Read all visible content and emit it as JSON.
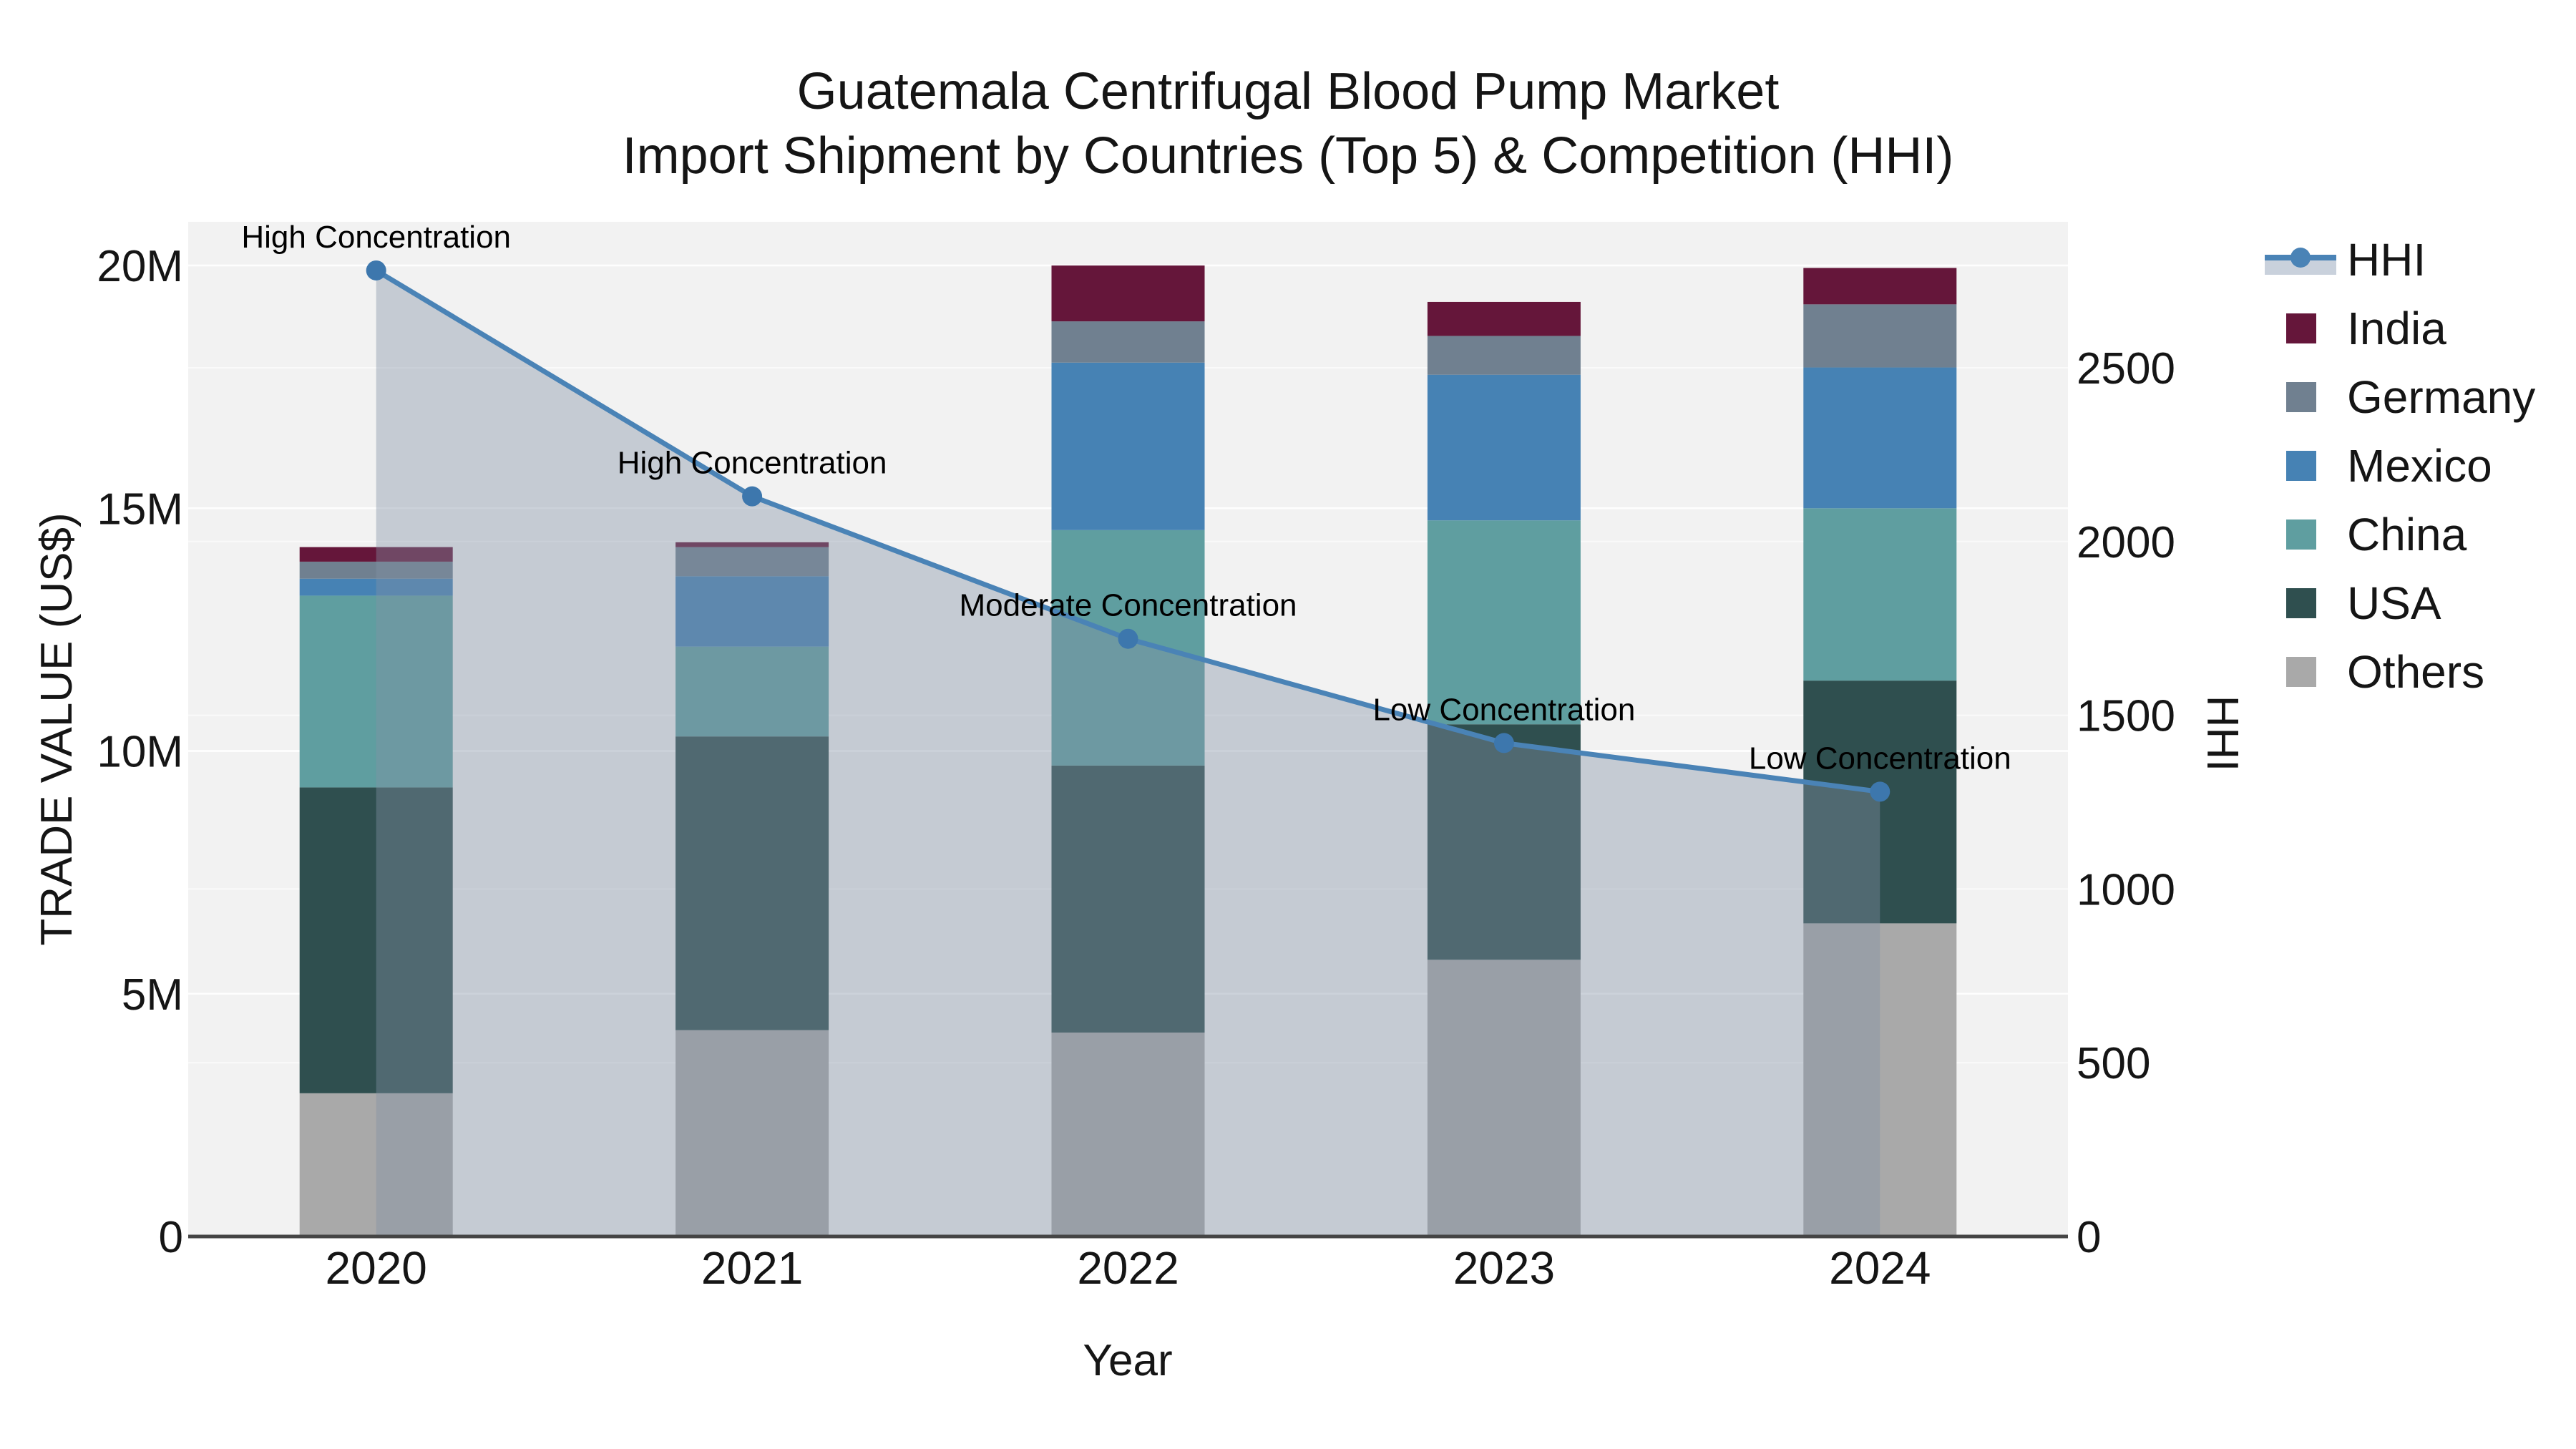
{
  "title": {
    "line1": "Guatemala Centrifugal Blood Pump Market",
    "line2": "Import Shipment by Countries (Top 5) & Competition (HHI)"
  },
  "axes": {
    "x": {
      "title": "Year",
      "categories": [
        "2020",
        "2021",
        "2022",
        "2023",
        "2024"
      ]
    },
    "left": {
      "title": "TRADE VALUE (US$)",
      "tick_labels": [
        "0",
        "5M",
        "10M",
        "15M",
        "20M"
      ],
      "tick_values_musd": [
        0,
        5,
        10,
        15,
        20
      ],
      "max_musd": 20.9
    },
    "right": {
      "title": "HHI",
      "tick_labels": [
        "0",
        "500",
        "1000",
        "1500",
        "2000",
        "2500"
      ],
      "tick_values": [
        0,
        500,
        1000,
        1500,
        2000,
        2500
      ],
      "max": 2920
    }
  },
  "legend": {
    "items": [
      {
        "label": "HHI",
        "type": "line",
        "color": "#4a83b6"
      },
      {
        "label": "India",
        "type": "box",
        "color": "#65163a"
      },
      {
        "label": "Germany",
        "type": "box",
        "color": "#708090"
      },
      {
        "label": "Mexico",
        "type": "box",
        "color": "#4682b4"
      },
      {
        "label": "China",
        "type": "box",
        "color": "#5f9ea0"
      },
      {
        "label": "USA",
        "type": "box",
        "color": "#2f4f4f"
      },
      {
        "label": "Others",
        "type": "box",
        "color": "#a9a9a9"
      }
    ]
  },
  "chart_data": {
    "type": "combo_stacked_bar_line",
    "title": "Guatemala Centrifugal Blood Pump Market — Import Shipment by Countries (Top 5) & Competition (HHI)",
    "categories": [
      "2020",
      "2021",
      "2022",
      "2023",
      "2024"
    ],
    "xlabel": "Year",
    "ylabel_left": "TRADE VALUE (US$)",
    "ylabel_right": "HHI",
    "ylim_left_musd": [
      0,
      20.9
    ],
    "ylim_right": [
      0,
      2920
    ],
    "grid": true,
    "legend_position": "right-top",
    "bar_series_bottom_to_top": [
      {
        "name": "Others",
        "color": "#a9a9a9",
        "values_musd": [
          2.95,
          4.25,
          4.2,
          5.7,
          6.45
        ]
      },
      {
        "name": "USA",
        "color": "#2f4f4f",
        "values_musd": [
          6.3,
          6.05,
          5.5,
          4.85,
          5.0
        ]
      },
      {
        "name": "China",
        "color": "#5f9ea0",
        "values_musd": [
          3.95,
          1.85,
          4.85,
          4.2,
          3.55
        ]
      },
      {
        "name": "Mexico",
        "color": "#4682b4",
        "values_musd": [
          0.35,
          1.45,
          3.45,
          3.0,
          2.9
        ]
      },
      {
        "name": "Germany",
        "color": "#708090",
        "values_musd": [
          0.35,
          0.6,
          0.85,
          0.8,
          1.3
        ]
      },
      {
        "name": "India",
        "color": "#65163a",
        "values_musd": [
          0.3,
          0.1,
          1.15,
          0.7,
          0.75
        ]
      }
    ],
    "bar_totals_musd": [
      14.2,
      14.3,
      20.0,
      19.25,
      19.95
    ],
    "line_series": {
      "name": "HHI",
      "color": "#4a83b6",
      "marker_color": "#3d77ad",
      "area_fill": "rgba(130,145,166,0.40)",
      "values": [
        2780,
        2130,
        1720,
        1420,
        1280
      ]
    },
    "annotations": [
      {
        "x": "2020",
        "text": "High Concentration"
      },
      {
        "x": "2021",
        "text": "High Concentration"
      },
      {
        "x": "2022",
        "text": "Moderate Concentration"
      },
      {
        "x": "2023",
        "text": "Low Concentration"
      },
      {
        "x": "2024",
        "text": "Low Concentration"
      }
    ],
    "style": {
      "plot_bg": "#f2f2f2",
      "grid_color": "#ffffff",
      "axis_line_color": "#454545",
      "text_color": "#111111"
    }
  }
}
